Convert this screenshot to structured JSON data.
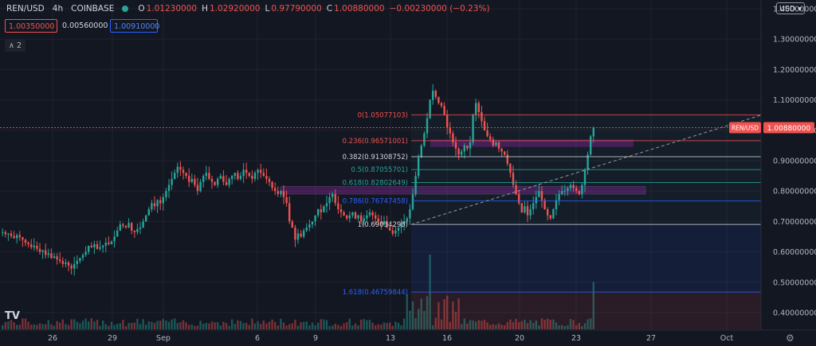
{
  "header": {
    "symbol": "REN/USD",
    "interval": "4h",
    "exchange": "COINBASE",
    "status_color": "#26a69a",
    "open_label": "O",
    "open_value": "1.01230000",
    "high_label": "H",
    "high_value": "1.02920000",
    "low_label": "L",
    "low_value": "0.97790000",
    "close_label": "C",
    "close_value": "1.00880000",
    "change_value": "−0.00230000 (−0.23%)"
  },
  "trade": {
    "sell": "1.00350000",
    "spread": "0.00560000",
    "buy": "1.00910000"
  },
  "indicators_collapse": "∧ 2",
  "currency_button": "USD ▾",
  "logo_text": "TV",
  "settings_icon": "gear-icon",
  "colors": {
    "up": "#26a69a",
    "down": "#ef5350",
    "background": "#131722",
    "text": "#d1d4dc"
  },
  "chart_data": {
    "type": "candlestick",
    "price_axis": [
      "1.40000000",
      "1.30000000",
      "1.20000000",
      "1.10000000",
      "1.00000000",
      "0.90000000",
      "0.80000000",
      "0.70000000",
      "0.60000000",
      "0.50000000",
      "0.40000000"
    ],
    "time_axis": [
      "26",
      "29",
      "Sep",
      "6",
      "9",
      "13",
      "16",
      "20",
      "23",
      "27",
      "Oct"
    ],
    "ylim": [
      0.34,
      1.42
    ],
    "current_price_label": "REN/USD",
    "current_price": "1.00880000",
    "fibonacci": [
      {
        "label": "0(1.05077103)",
        "price": 1.05077103
      },
      {
        "label": "0.236(0.96571001)",
        "price": 0.96571001
      },
      {
        "label": "0.382(0.91308752)",
        "price": 0.91308752
      },
      {
        "label": "0.5(0.87055701)",
        "price": 0.87055701
      },
      {
        "label": "0.618(0.82802649)",
        "price": 0.82802649
      },
      {
        "label": "0.786(0.76747458)",
        "price": 0.76747458
      },
      {
        "label": "1(0.69034298)",
        "price": 0.69034298
      },
      {
        "label": "1.618(0.46759844)",
        "price": 0.46759844
      }
    ],
    "support_zones": [
      {
        "top": 0.97,
        "bottom": 0.945
      },
      {
        "top": 0.815,
        "bottom": 0.79
      }
    ],
    "closes": [
      0.665,
      0.658,
      0.66,
      0.652,
      0.645,
      0.655,
      0.648,
      0.64,
      0.63,
      0.625,
      0.615,
      0.62,
      0.61,
      0.6,
      0.605,
      0.59,
      0.595,
      0.58,
      0.585,
      0.575,
      0.57,
      0.56,
      0.565,
      0.555,
      0.545,
      0.56,
      0.57,
      0.58,
      0.59,
      0.6,
      0.62,
      0.615,
      0.625,
      0.61,
      0.615,
      0.62,
      0.63,
      0.625,
      0.635,
      0.65,
      0.67,
      0.69,
      0.685,
      0.68,
      0.695,
      0.67,
      0.665,
      0.675,
      0.68,
      0.7,
      0.72,
      0.74,
      0.76,
      0.75,
      0.77,
      0.76,
      0.78,
      0.8,
      0.82,
      0.84,
      0.86,
      0.88,
      0.87,
      0.86,
      0.85,
      0.83,
      0.84,
      0.82,
      0.8,
      0.83,
      0.85,
      0.86,
      0.84,
      0.83,
      0.82,
      0.84,
      0.85,
      0.83,
      0.82,
      0.84,
      0.85,
      0.86,
      0.84,
      0.85,
      0.87,
      0.86,
      0.85,
      0.84,
      0.86,
      0.87,
      0.86,
      0.85,
      0.84,
      0.83,
      0.81,
      0.8,
      0.79,
      0.8,
      0.78,
      0.76,
      0.7,
      0.68,
      0.64,
      0.66,
      0.65,
      0.67,
      0.68,
      0.69,
      0.7,
      0.72,
      0.74,
      0.73,
      0.75,
      0.76,
      0.78,
      0.79,
      0.76,
      0.74,
      0.73,
      0.72,
      0.71,
      0.72,
      0.73,
      0.71,
      0.72,
      0.7,
      0.71,
      0.72,
      0.73,
      0.72,
      0.71,
      0.7,
      0.69,
      0.7,
      0.68,
      0.67,
      0.66,
      0.67,
      0.68,
      0.69,
      0.7,
      0.71,
      0.74,
      0.79,
      0.85,
      0.91,
      0.95,
      0.99,
      1.04,
      1.1,
      1.13,
      1.11,
      1.09,
      1.08,
      1.05,
      1.01,
      0.99,
      0.96,
      0.94,
      0.92,
      0.93,
      0.95,
      0.94,
      0.96,
      1.05,
      1.09,
      1.06,
      1.03,
      1.0,
      0.98,
      0.97,
      0.95,
      0.96,
      0.94,
      0.93,
      0.92,
      0.89,
      0.86,
      0.82,
      0.79,
      0.76,
      0.73,
      0.75,
      0.72,
      0.74,
      0.76,
      0.78,
      0.8,
      0.77,
      0.74,
      0.72,
      0.71,
      0.74,
      0.77,
      0.79,
      0.8,
      0.8,
      0.81,
      0.82,
      0.81,
      0.8,
      0.79,
      0.82,
      0.87,
      0.92,
      0.98,
      1.01
    ]
  }
}
